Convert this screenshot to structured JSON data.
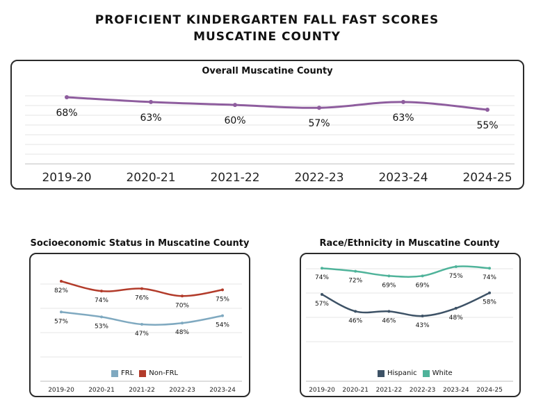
{
  "page": {
    "title_line1": "PROFICIENT KINDERGARTEN FALL FAST SCORES",
    "title_line2": "MUSCATINE COUNTY"
  },
  "chart_data": [
    {
      "type": "line",
      "title": "Overall Muscatine County",
      "categories": [
        "2019-20",
        "2020-21",
        "2021-22",
        "2022-23",
        "2023-24",
        "2024-25"
      ],
      "series": [
        {
          "name": "",
          "values": [
            68,
            63,
            60,
            57,
            63,
            55
          ],
          "color": "#8e5d9e"
        }
      ],
      "ylim": [
        0,
        100
      ],
      "grid": true,
      "legend": "none"
    },
    {
      "type": "line",
      "title": "Socioeconomic Status in Muscatine County",
      "categories": [
        "2019-20",
        "2020-21",
        "2021-22",
        "2022-23",
        "2023-24"
      ],
      "series": [
        {
          "name": "FRL",
          "values": [
            57,
            53,
            47,
            48,
            54
          ],
          "color": "#7fa9c0"
        },
        {
          "name": "Non-FRL",
          "values": [
            82,
            74,
            76,
            70,
            75
          ],
          "color": "#b23b2a"
        }
      ],
      "ylim": [
        0,
        100
      ],
      "grid": true,
      "legend": "bottom"
    },
    {
      "type": "line",
      "title": "Race/Ethnicity in Muscatine County",
      "categories": [
        "2019-20",
        "2020-21",
        "2021-22",
        "2022-23",
        "2023-24",
        "2024-25"
      ],
      "series": [
        {
          "name": "Hispanic",
          "values": [
            57,
            46,
            46,
            43,
            48,
            58
          ],
          "color": "#3d5266"
        },
        {
          "name": "White",
          "values": [
            74,
            72,
            69,
            69,
            75,
            74
          ],
          "color": "#4fb39a"
        }
      ],
      "ylim": [
        0,
        100
      ],
      "grid": true,
      "legend": "bottom"
    }
  ]
}
